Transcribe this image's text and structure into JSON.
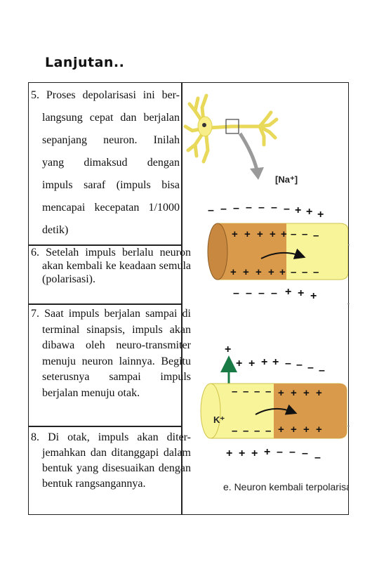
{
  "heading": "Lanjutan..",
  "rows": [
    {
      "num": "5.",
      "text_lines": [
        "5. Proses depolarisasi ini ber-",
        "langsung cepat dan berjalan",
        "sepanjang neuron. Inilah",
        "yang dimaksud dengan",
        "impuls saraf (impuls bisa",
        "mencapai kecepatan 1/1000",
        "detik)"
      ]
    },
    {
      "num": "6.",
      "text": "6. Setelah impuls berlalu neuron akan kembali ke keadaan semula (polarisasi)."
    },
    {
      "num": "7.",
      "text": "7. Saat impuls berjalan sampai di terminal sinapsis, impuls akan dibawa oleh neuro-transmiter menuju neuron lainnya. Begitu seterusnya sampai impuls berjalan menuju otak."
    },
    {
      "num": "8.",
      "text": "8. Di otak, impuls akan diter-jemahkan dan ditanggapi dalam bentuk yang disesuaikan dengan bentuk rangsangannya."
    }
  ],
  "figure": {
    "ion_na": "[Na⁺]",
    "ion_k": "K⁺",
    "caption": "e. Neuron kembali terpolarisasi",
    "colors": {
      "neuron": "#f7ee8a",
      "axon_light": "#f8f49a",
      "axon_dark": "#d99a4c",
      "arrow_gray": "#9a9a9a",
      "k_arrow": "#1a7a45"
    }
  }
}
